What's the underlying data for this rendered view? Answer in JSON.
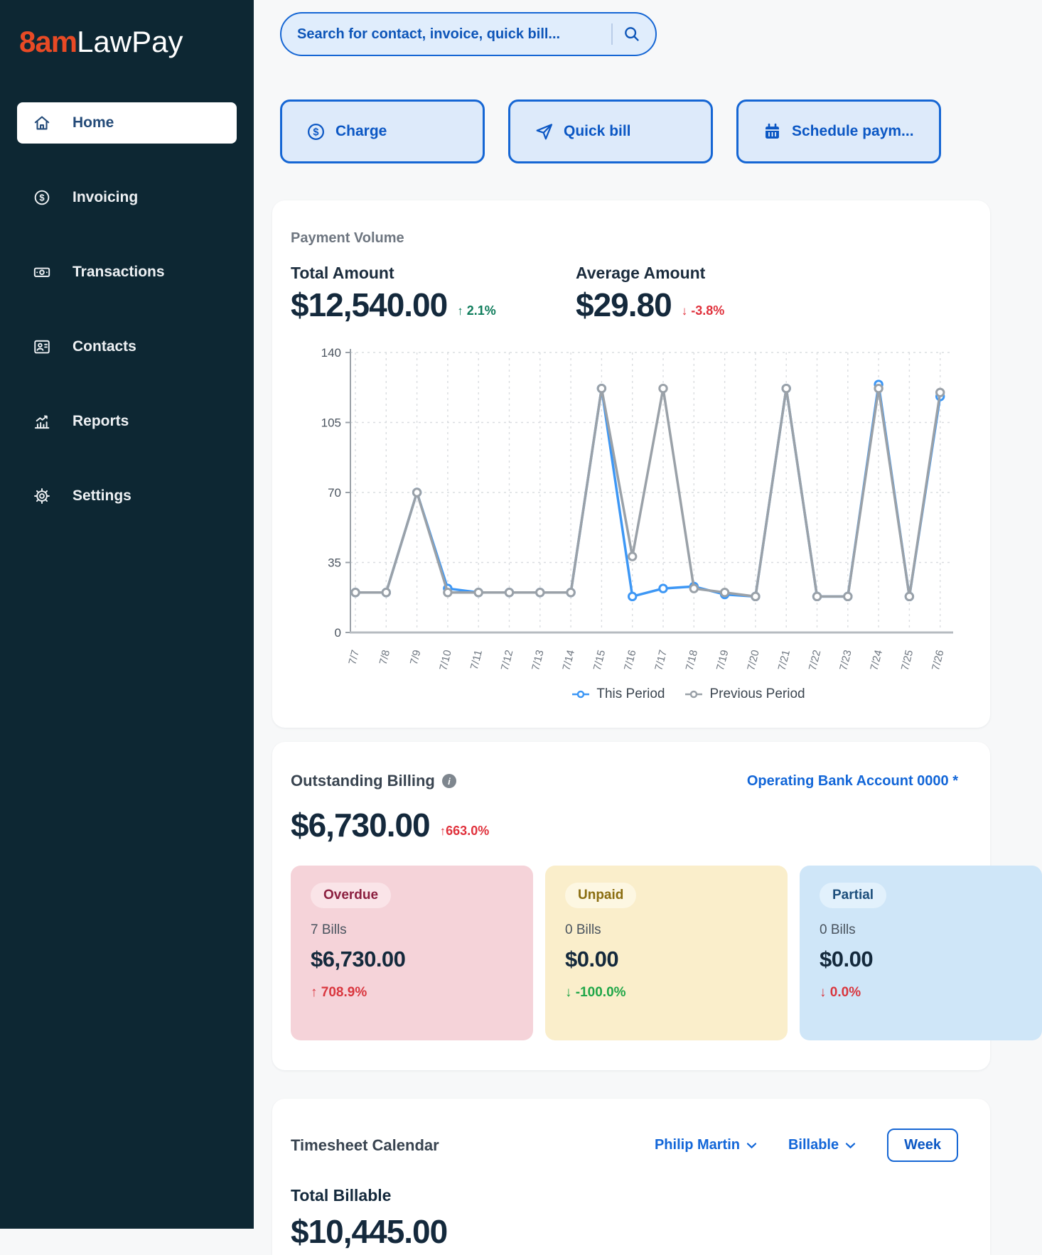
{
  "theme": {
    "sidebar_bg": "#0d2733",
    "brand_orange": "#e84a25",
    "accent_blue_border": "#1566d4",
    "accent_blue_text": "#0b57c4",
    "accent_blue_bg": "#ddeafa",
    "link_blue": "#1266d8",
    "text_dark": "#14293c",
    "green": "#0e7c5b",
    "red": "#e0313c"
  },
  "sidebar": {
    "logo_prefix": "8am",
    "logo_suffix": "LawPay",
    "items": [
      {
        "label": "Home",
        "icon": "home-icon",
        "active": true
      },
      {
        "label": "Invoicing",
        "icon": "dollar-circle-icon",
        "active": false
      },
      {
        "label": "Transactions",
        "icon": "banknote-icon",
        "active": false
      },
      {
        "label": "Contacts",
        "icon": "contact-card-icon",
        "active": false
      },
      {
        "label": "Reports",
        "icon": "bar-chart-icon",
        "active": false
      },
      {
        "label": "Settings",
        "icon": "gear-icon",
        "active": false
      }
    ]
  },
  "topbar": {
    "search_placeholder": "Search for contact, invoice, quick bill...",
    "actions": [
      {
        "label": "Charge",
        "icon": "dollar-circle-icon"
      },
      {
        "label": "Quick bill",
        "icon": "paper-plane-icon"
      },
      {
        "label": "Schedule paym...",
        "icon": "calendar-icon"
      }
    ]
  },
  "payment_volume": {
    "title": "Payment Volume",
    "total": {
      "label": "Total Amount",
      "value": "$12,540.00",
      "arrow": "↑",
      "delta": "2.1%",
      "delta_color": "#0e7c5b"
    },
    "average": {
      "label": "Average Amount",
      "value": "$29.80",
      "arrow": "↓",
      "delta": "-3.8%",
      "delta_color": "#e0313c"
    }
  },
  "chart_data": {
    "type": "line",
    "title": "Payment Volume",
    "categories": [
      "7/7",
      "7/8",
      "7/9",
      "7/10",
      "7/11",
      "7/12",
      "7/13",
      "7/14",
      "7/15",
      "7/16",
      "7/17",
      "7/18",
      "7/19",
      "7/20",
      "7/21",
      "7/22",
      "7/23",
      "7/24",
      "7/25",
      "7/26"
    ],
    "series": [
      {
        "name": "This Period",
        "color": "#3d97f5",
        "values": [
          20,
          20,
          70,
          22,
          20,
          20,
          20,
          20,
          122,
          18,
          22,
          23,
          19,
          18,
          122,
          18,
          18,
          124,
          18,
          118
        ]
      },
      {
        "name": "Previous Period",
        "color": "#9aa1a8",
        "values": [
          20,
          20,
          70,
          20,
          20,
          20,
          20,
          20,
          122,
          38,
          122,
          22,
          20,
          18,
          122,
          18,
          18,
          122,
          18,
          120
        ]
      }
    ],
    "xlabel": "",
    "ylabel": "",
    "ylim": [
      0,
      140
    ],
    "yticks": [
      0,
      35,
      70,
      105,
      140
    ],
    "grid": "dashed",
    "legend_position": "bottom"
  },
  "outstanding": {
    "title": "Outstanding Billing",
    "info_icon": "i",
    "account_link": "Operating Bank Account 0000 *",
    "amount": "$6,730.00",
    "arrow": "↑",
    "delta": "663.0%",
    "delta_color": "#e0313c",
    "cards": [
      {
        "badge": "Overdue",
        "bg": "#f5d3d9",
        "badge_bg": "#fae4e8",
        "badge_color": "#8c2040",
        "bills": "7 Bills",
        "amount": "$6,730.00",
        "arrow": "↑",
        "delta": "708.9%",
        "delta_color": "#d9363e"
      },
      {
        "badge": "Unpaid",
        "bg": "#faeecb",
        "badge_bg": "#fdf7e2",
        "badge_color": "#8a6d10",
        "bills": "0 Bills",
        "amount": "$0.00",
        "arrow": "↓",
        "delta": "-100.0%",
        "delta_color": "#1fa648"
      },
      {
        "badge": "Partial",
        "bg": "#cfe6f8",
        "badge_bg": "#e2f1fc",
        "badge_color": "#1d4f7c",
        "bills": "0 Bills",
        "amount": "$0.00",
        "arrow": "↓",
        "delta": "0.0%",
        "delta_color": "#d9363e"
      }
    ]
  },
  "timesheet": {
    "title": "Timesheet Calendar",
    "person_filter": "Philip Martin",
    "type_filter": "Billable",
    "view_button": "Week",
    "total_label": "Total Billable",
    "total_value": "$10,445.00"
  }
}
